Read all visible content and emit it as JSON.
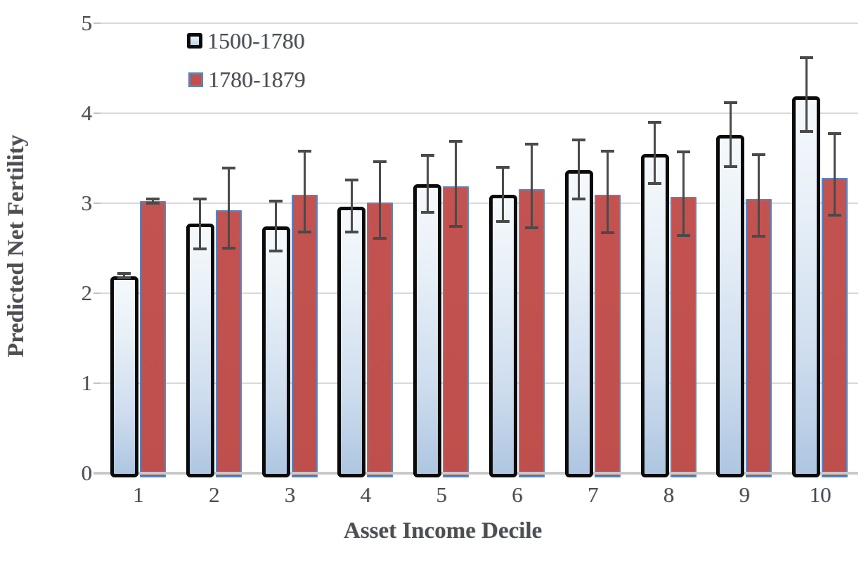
{
  "chart_data": {
    "type": "bar",
    "title": "",
    "xlabel": "Asset Income Decile",
    "ylabel": "Predicted Net Fertility",
    "categories": [
      "1",
      "2",
      "3",
      "4",
      "5",
      "6",
      "7",
      "8",
      "9",
      "10"
    ],
    "yticks": [
      0,
      1,
      2,
      3,
      4,
      5
    ],
    "ylim": [
      0,
      5
    ],
    "grid": true,
    "legend_position": "top-left-inside",
    "error_bars": true,
    "series": [
      {
        "name": "1500-1780",
        "fill_style": "light-blue-gradient-black-border",
        "fill_top": "#F5F9FC",
        "fill_bottom": "#AEC6E1",
        "border_color": "#0A0A0A",
        "values": [
          2.19,
          2.77,
          2.74,
          2.96,
          3.21,
          3.09,
          3.37,
          3.55,
          3.76,
          4.19
        ],
        "err_low": [
          2.17,
          2.49,
          2.47,
          2.68,
          2.9,
          2.8,
          3.05,
          3.22,
          3.41,
          3.8
        ],
        "err_high": [
          2.22,
          3.05,
          3.02,
          3.26,
          3.53,
          3.4,
          3.7,
          3.9,
          4.12,
          4.62
        ]
      },
      {
        "name": "1780-1879",
        "fill_style": "red-blue-border",
        "fill": "#C0504D",
        "border_color": "#5B84BE",
        "values": [
          3.02,
          2.92,
          3.09,
          3.01,
          3.19,
          3.16,
          3.09,
          3.07,
          3.05,
          3.28
        ],
        "err_low": [
          3.0,
          2.5,
          2.68,
          2.61,
          2.74,
          2.73,
          2.67,
          2.64,
          2.63,
          2.87
        ],
        "err_high": [
          3.05,
          3.39,
          3.58,
          3.46,
          3.69,
          3.66,
          3.58,
          3.57,
          3.54,
          3.77
        ]
      }
    ],
    "colors": {
      "gridline": "#D9D9D9",
      "axis_line": "#C9C9C9",
      "tick_dash": "#C2C2C2",
      "error_bar": "#4A4A4A",
      "text": "#4E4E4E"
    }
  }
}
